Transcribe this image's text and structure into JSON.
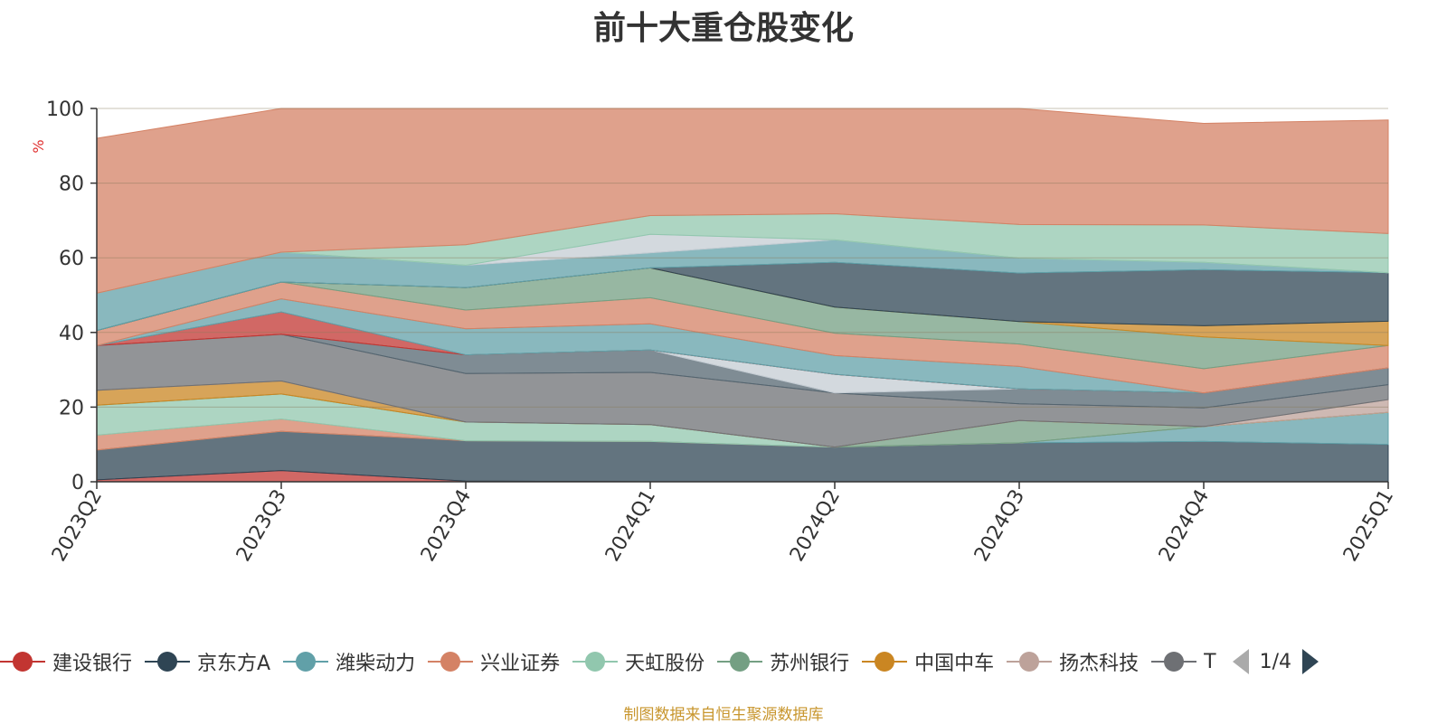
{
  "chart_data": {
    "type": "area",
    "stacked": true,
    "title": "前十大重仓股变化",
    "ylabel": "%",
    "ylim": [
      0,
      100
    ],
    "yticks": [
      0,
      20,
      40,
      60,
      80,
      100
    ],
    "categories": [
      "2023Q2",
      "2023Q3",
      "2023Q4",
      "2024Q1",
      "2024Q2",
      "2024Q3",
      "2024Q4",
      "2025Q1"
    ],
    "series": [
      {
        "name": "建设银行",
        "color": "#c23531",
        "values": [
          0.5,
          3.0,
          0.2,
          0.0,
          0.0,
          0.0,
          0.0,
          0.0
        ]
      },
      {
        "name": "京东方A",
        "color": "#2f4554",
        "values": [
          8.0,
          10.5,
          10.8,
          10.8,
          9.3,
          10.4,
          10.8,
          10.0
        ]
      },
      {
        "name": "潍柴动力",
        "color": "#61a0a8",
        "values": [
          0.0,
          0.0,
          0.0,
          0.0,
          0.0,
          0.0,
          4.0,
          8.6
        ]
      },
      {
        "name": "兴业证券",
        "color": "#d48265",
        "values": [
          4.0,
          3.3,
          0.0,
          0.0,
          0.0,
          0.0,
          0.0,
          0.0
        ]
      },
      {
        "name": "天虹股份",
        "color": "#91c7ae",
        "values": [
          8.0,
          6.7,
          5.0,
          4.5,
          0.0,
          0.0,
          0.0,
          0.0
        ]
      },
      {
        "name": "苏州银行",
        "color": "#749f83",
        "values": [
          0.0,
          0.0,
          0.0,
          0.0,
          0.0,
          6.0,
          0.0,
          0.0
        ]
      },
      {
        "name": "中国中车",
        "color": "#ca8622",
        "values": [
          4.0,
          3.5,
          0.0,
          0.0,
          0.0,
          0.0,
          0.0,
          0.0
        ]
      },
      {
        "name": "扬杰科技",
        "color": "#bda29a",
        "values": [
          0.0,
          0.0,
          0.0,
          0.0,
          0.0,
          0.0,
          0.0,
          3.4
        ]
      },
      {
        "name": "T",
        "color": "#6e7074",
        "values": [
          12.0,
          12.5,
          13.0,
          14.0,
          14.5,
          4.5,
          5.0,
          4.0
        ]
      }
    ],
    "additional_series_colors": [
      "#546570",
      "#c4ccd3",
      "#6e7074",
      "#c23531",
      "#61a0a8",
      "#d48265",
      "#749f83",
      "#91c7ae",
      "#ca8622"
    ],
    "additional_series_values": [
      [
        0.0,
        0.0,
        5.0,
        6.0,
        0.0,
        4.0,
        4.0,
        4.5
      ],
      [
        0.0,
        0.0,
        0.0,
        0.0,
        5.0,
        0.0,
        0.0,
        0.0
      ],
      [
        0.0,
        0.0,
        0.0,
        0.0,
        0.0,
        0.0,
        0.0,
        0.0
      ],
      [
        0.0,
        6.0,
        0.0,
        0.0,
        0.0,
        0.0,
        0.0,
        0.0
      ],
      [
        0.0,
        3.5,
        7.0,
        7.0,
        5.0,
        6.0,
        0.0,
        0.0
      ],
      [
        4.0,
        4.5,
        5.0,
        7.0,
        6.0,
        6.0,
        6.5,
        6.0
      ],
      [
        0.0,
        0.0,
        6.0,
        8.0,
        7.0,
        6.0,
        8.5,
        0.0
      ],
      [
        0.0,
        0.0,
        0.0,
        0.0,
        0.0,
        0.0,
        0.0,
        0.0
      ],
      [
        0.0,
        0.0,
        0.0,
        0.0,
        0.0,
        0.0,
        3.0,
        6.5
      ],
      [
        0.0,
        0.0,
        0.0,
        0.0,
        12.0,
        13.0,
        15.0,
        13.0
      ],
      [
        10.0,
        8.0,
        6.0,
        4.0,
        6.0,
        4.0,
        2.0,
        0.0
      ],
      [
        0.0,
        0.0,
        0.0,
        5.0,
        0.0,
        0.0,
        0.0,
        0.0
      ],
      [
        0.0,
        0.0,
        5.5,
        5.0,
        7.0,
        9.0,
        10.0,
        10.5
      ],
      [
        41.5,
        39.5,
        36.5,
        28.7,
        30.2,
        31.1,
        27.2,
        30.4
      ]
    ],
    "additional_fill_colors": [
      "#546570",
      "#c4ccd3",
      "#6e7074",
      "#c23531",
      "#61a0a8",
      "#d48265",
      "#749f83",
      "#91c7ae",
      "#ca8622",
      "#2f4554",
      "#61a0a8",
      "#c4ccd3",
      "#91c7ae",
      "#d48265"
    ],
    "grid": true
  },
  "legend": {
    "items": [
      {
        "label": "建设银行",
        "color": "#c23531"
      },
      {
        "label": "京东方A",
        "color": "#2f4554"
      },
      {
        "label": "潍柴动力",
        "color": "#61a0a8"
      },
      {
        "label": "兴业证券",
        "color": "#d48265"
      },
      {
        "label": "天虹股份",
        "color": "#91c7ae"
      },
      {
        "label": "苏州银行",
        "color": "#749f83"
      },
      {
        "label": "中国中车",
        "color": "#ca8622"
      },
      {
        "label": "扬杰科技",
        "color": "#bda29a"
      },
      {
        "label": "T",
        "color": "#6e7074"
      }
    ],
    "page": "1/4"
  },
  "source_note": "制图数据来自恒生聚源数据库"
}
